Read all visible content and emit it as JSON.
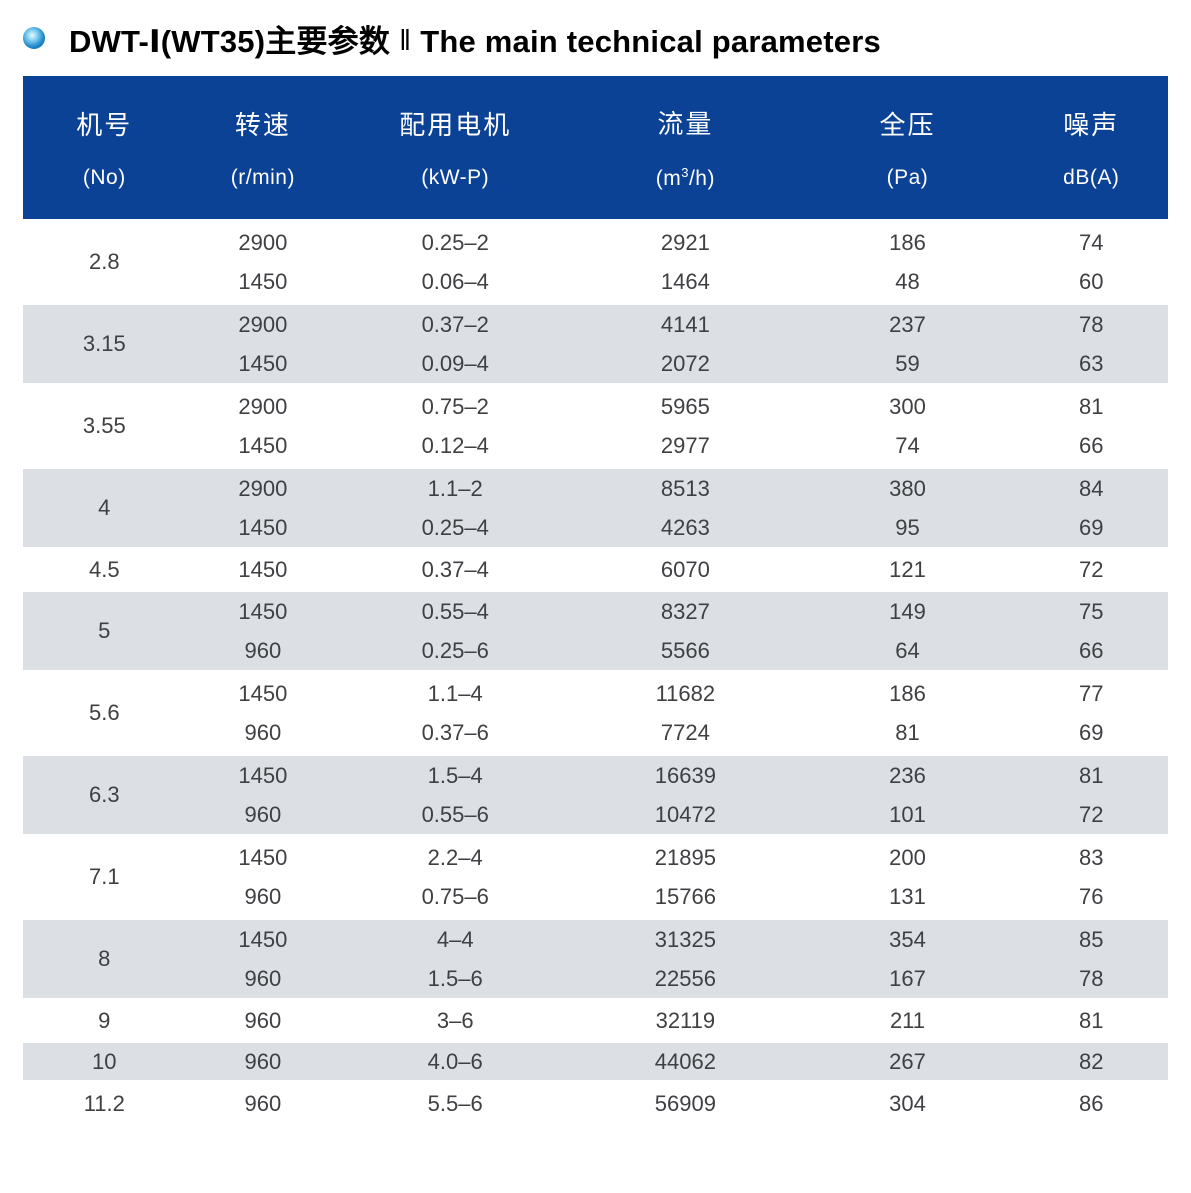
{
  "title": {
    "zh": "DWT-Ⅰ(WT35)主要参数",
    "divider": "‖",
    "en": "The main technical parameters"
  },
  "colors": {
    "header_bg": "#0b4295",
    "band_gray": "#dce0e4",
    "body_text": "#3f4043",
    "bullet_blue": "#0b4f9f"
  },
  "table": {
    "columns": [
      {
        "label": "机号",
        "unit": "(No)"
      },
      {
        "label": "转速",
        "unit": "(r/min)"
      },
      {
        "label": "配用电机",
        "unit": "(kW-P)"
      },
      {
        "label": "流量",
        "unit_pre": "(m",
        "unit_sup": "3",
        "unit_post": "/h)"
      },
      {
        "label": "全压",
        "unit": "(Pa)"
      },
      {
        "label": "噪声",
        "unit": "dB(A)"
      }
    ],
    "groups": [
      {
        "no": "2.8",
        "rows": [
          [
            "2900",
            "0.25–2",
            "2921",
            "186",
            "74"
          ],
          [
            "1450",
            "0.06–4",
            "1464",
            "48",
            "60"
          ]
        ]
      },
      {
        "no": "3.15",
        "rows": [
          [
            "2900",
            "0.37–2",
            "4141",
            "237",
            "78"
          ],
          [
            "1450",
            "0.09–4",
            "2072",
            "59",
            "63"
          ]
        ]
      },
      {
        "no": "3.55",
        "rows": [
          [
            "2900",
            "0.75–2",
            "5965",
            "300",
            "81"
          ],
          [
            "1450",
            "0.12–4",
            "2977",
            "74",
            "66"
          ]
        ]
      },
      {
        "no": "4",
        "rows": [
          [
            "2900",
            "1.1–2",
            "8513",
            "380",
            "84"
          ],
          [
            "1450",
            "0.25–4",
            "4263",
            "95",
            "69"
          ]
        ]
      },
      {
        "no": "4.5",
        "rows": [
          [
            "1450",
            "0.37–4",
            "6070",
            "121",
            "72"
          ]
        ]
      },
      {
        "no": "5",
        "rows": [
          [
            "1450",
            "0.55–4",
            "8327",
            "149",
            "75"
          ],
          [
            "960",
            "0.25–6",
            "5566",
            "64",
            "66"
          ]
        ]
      },
      {
        "no": "5.6",
        "rows": [
          [
            "1450",
            "1.1–4",
            "11682",
            "186",
            "77"
          ],
          [
            "960",
            "0.37–6",
            "7724",
            "81",
            "69"
          ]
        ]
      },
      {
        "no": "6.3",
        "rows": [
          [
            "1450",
            "1.5–4",
            "16639",
            "236",
            "81"
          ],
          [
            "960",
            "0.55–6",
            "10472",
            "101",
            "72"
          ]
        ]
      },
      {
        "no": "7.1",
        "rows": [
          [
            "1450",
            "2.2–4",
            "21895",
            "200",
            "83"
          ],
          [
            "960",
            "0.75–6",
            "15766",
            "131",
            "76"
          ]
        ]
      },
      {
        "no": "8",
        "rows": [
          [
            "1450",
            "4–4",
            "31325",
            "354",
            "85"
          ],
          [
            "960",
            "1.5–6",
            "22556",
            "167",
            "78"
          ]
        ]
      },
      {
        "no": "9",
        "rows": [
          [
            "960",
            "3–6",
            "32119",
            "211",
            "81"
          ]
        ]
      },
      {
        "no": "10",
        "rows": [
          [
            "960",
            "4.0–6",
            "44062",
            "267",
            "82"
          ]
        ]
      },
      {
        "no": "11.2",
        "rows": [
          [
            "960",
            "5.5–6",
            "56909",
            "304",
            "86"
          ]
        ]
      }
    ]
  }
}
